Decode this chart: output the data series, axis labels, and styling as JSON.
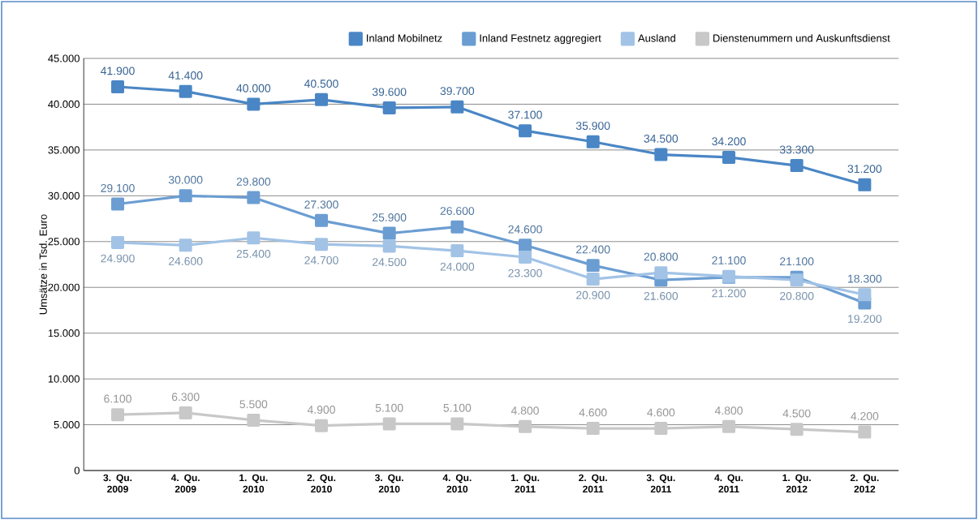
{
  "chart_data": {
    "type": "line",
    "ylabel": "Umsätze in Tsd. Euro",
    "categories": [
      "3. Qu. 2009",
      "4. Qu. 2009",
      "1. Qu. 2010",
      "2. Qu. 2010",
      "3. Qu. 2010",
      "4. Qu. 2010",
      "1. Qu. 2011",
      "2. Qu. 2011",
      "3. Qu. 2011",
      "4. Qu. 2011",
      "1. Qu. 2012",
      "2. Qu. 2012"
    ],
    "series": [
      {
        "name": "Inland Mobilnetz",
        "color": "#4a86c5",
        "values": [
          41900,
          41400,
          40000,
          40500,
          39600,
          39700,
          37100,
          35900,
          34500,
          34200,
          33300,
          31200
        ],
        "value_labels": [
          "41.900",
          "41.400",
          "40.000",
          "40.500",
          "39.600",
          "39.700",
          "37.100",
          "35.900",
          "34.500",
          "34.200",
          "33.300",
          "31.200"
        ]
      },
      {
        "name": "Inland Festnetz aggregiert",
        "color": "#6b9dd2",
        "values": [
          29100,
          30000,
          29800,
          27300,
          25900,
          26600,
          24600,
          22400,
          20800,
          21100,
          21100,
          18300
        ],
        "value_labels": [
          "29.100",
          "30.000",
          "29.800",
          "27.300",
          "25.900",
          "26.600",
          "24.600",
          "22.400",
          "20.800",
          "21.100",
          "21.100",
          "18.300"
        ]
      },
      {
        "name": "Ausland",
        "color": "#a2c3e6",
        "values": [
          24900,
          24600,
          25400,
          24700,
          24500,
          24000,
          23300,
          20900,
          21600,
          21200,
          20800,
          19200
        ],
        "value_labels": [
          "24.900",
          "24.600",
          "25.400",
          "24.700",
          "24.500",
          "24.000",
          "23.300",
          "20.900",
          "21.600",
          "21.200",
          "20.800",
          "19.200"
        ]
      },
      {
        "name": "Dienstenummern und Auskunftsdienst",
        "color": "#c8c8c8",
        "values": [
          6100,
          6300,
          5500,
          4900,
          5100,
          5100,
          4800,
          4600,
          4600,
          4800,
          4500,
          4200
        ],
        "value_labels": [
          "6.100",
          "6.300",
          "5.500",
          "4.900",
          "5.100",
          "5.100",
          "4.800",
          "4.600",
          "4.600",
          "4.800",
          "4.500",
          "4.200"
        ]
      }
    ],
    "ylim": [
      0,
      45000
    ],
    "yticks": [
      0,
      {
        "value": 5000,
        "label": "5.000"
      },
      {
        "value": 10000,
        "label": "10.000"
      },
      {
        "value": 15000,
        "label": "15.000"
      },
      {
        "value": 20000,
        "label": "20.000"
      },
      {
        "value": 25000,
        "label": "25.000"
      },
      {
        "value": 30000,
        "label": "30.000"
      },
      {
        "value": 35000,
        "label": "35.000"
      },
      {
        "value": 40000,
        "label": "40.000"
      },
      {
        "value": 45000,
        "label": "45.000"
      }
    ],
    "grid": "y",
    "legend": "top right",
    "marker": "square",
    "line_style": "solid"
  }
}
